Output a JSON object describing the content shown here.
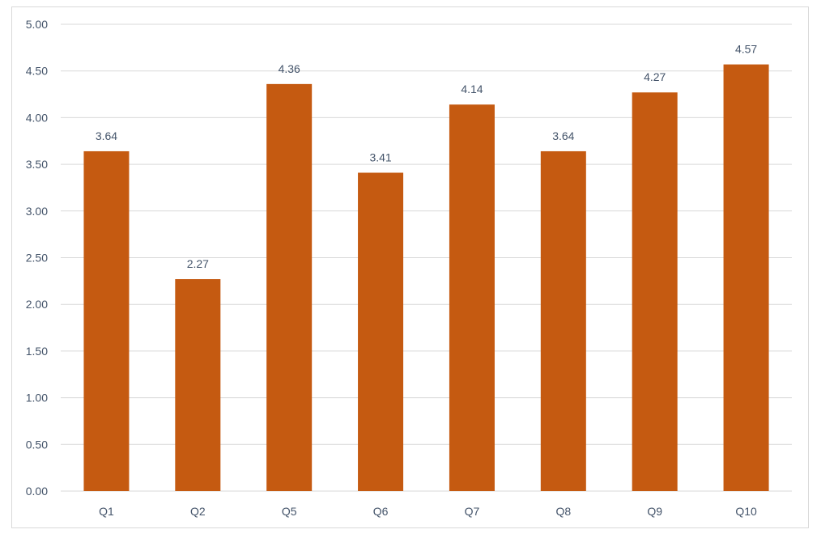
{
  "chart_data": {
    "type": "bar",
    "categories": [
      "Q1",
      "Q2",
      "Q5",
      "Q6",
      "Q7",
      "Q8",
      "Q9",
      "Q10"
    ],
    "values": [
      3.64,
      2.27,
      4.36,
      3.41,
      4.14,
      3.64,
      4.27,
      4.57
    ],
    "value_labels": [
      "3.64",
      "2.27",
      "4.36",
      "3.41",
      "4.14",
      "3.64",
      "4.27",
      "4.57"
    ],
    "y_ticks": [
      "0.00",
      "0.50",
      "1.00",
      "1.50",
      "2.00",
      "2.50",
      "3.00",
      "3.50",
      "4.00",
      "4.50",
      "5.00"
    ],
    "ylim": [
      0,
      5
    ],
    "grid": true,
    "colors": {
      "bar": "#c55a11",
      "grid": "#d9d9d9",
      "text": "#44546a"
    }
  }
}
